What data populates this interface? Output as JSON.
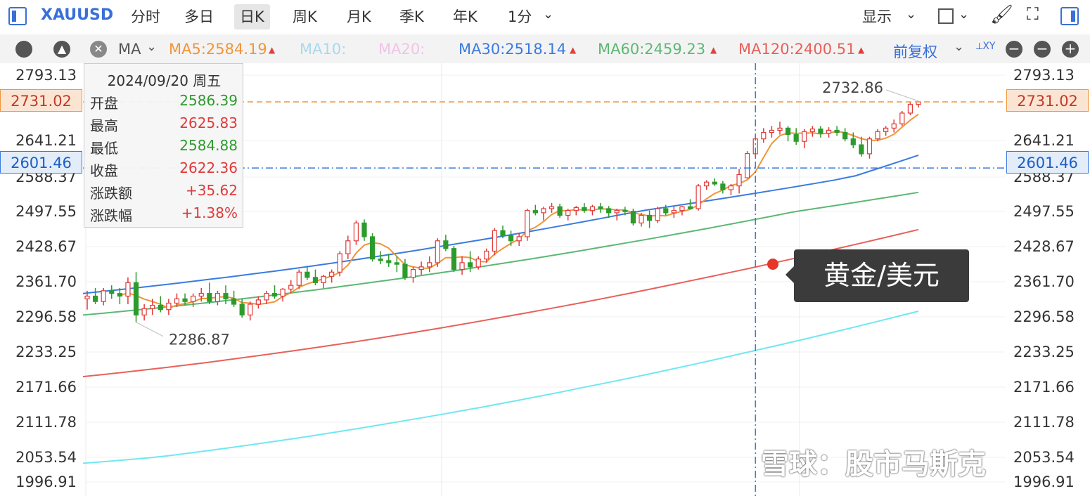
{
  "toolbar": {
    "symbol": "XAUUSD",
    "tabs": [
      "分时",
      "多日",
      "日K",
      "周K",
      "月K",
      "季K",
      "年K",
      "1分"
    ],
    "active_tab": "日K",
    "display_label": "显示",
    "adjust_label": "前复权"
  },
  "indicators": {
    "ma_label": "MA",
    "ma5": "MA5:2584.19",
    "ma10": "MA10:",
    "ma20": "MA20:",
    "ma30": "MA30:2518.14",
    "ma60": "MA60:2459.23",
    "ma120": "MA120:2400.51",
    "colors": {
      "ma5": "#f0953a",
      "ma10": "#a9d9ec",
      "ma20": "#f1c3e6",
      "ma30": "#3a7be0",
      "ma60": "#5cb874",
      "ma120": "#e8605a",
      "ma250": "#70e8ef"
    }
  },
  "tooltip": {
    "date": "2024/09/20 周五",
    "rows": [
      {
        "k": "开盘",
        "v": "2586.39",
        "color": "#2c9b2c"
      },
      {
        "k": "最高",
        "v": "2625.83",
        "color": "#e03a3a"
      },
      {
        "k": "最低",
        "v": "2584.88",
        "color": "#2c9b2c"
      },
      {
        "k": "收盘",
        "v": "2622.36",
        "color": "#e03a3a"
      },
      {
        "k": "涨跌额",
        "v": "+35.62",
        "color": "#e03a3a"
      },
      {
        "k": "涨跌幅",
        "v": "+1.38%",
        "color": "#e03a3a"
      }
    ]
  },
  "callout": "黄金/美元",
  "watermark": "雪球：股市马斯克",
  "current_price": "2731.02",
  "crosshair_price": "2601.46",
  "chart_data": {
    "type": "candlestick",
    "y_ticks": [
      "2793.13",
      "2641.21",
      "2588.37",
      "2497.55",
      "2428.67",
      "2361.70",
      "2296.58",
      "2233.25",
      "2171.66",
      "2111.78",
      "2053.54",
      "1996.91"
    ],
    "max_label": "2732.86",
    "min_label": "2286.87",
    "candles": [
      [
        2330,
        2345,
        2310,
        2335
      ],
      [
        2335,
        2350,
        2320,
        2325
      ],
      [
        2325,
        2350,
        2318,
        2345
      ],
      [
        2345,
        2355,
        2330,
        2340
      ],
      [
        2340,
        2350,
        2320,
        2335
      ],
      [
        2335,
        2370,
        2320,
        2360
      ],
      [
        2360,
        2380,
        2286.87,
        2300
      ],
      [
        2300,
        2320,
        2290,
        2312
      ],
      [
        2312,
        2330,
        2300,
        2318
      ],
      [
        2318,
        2335,
        2305,
        2310
      ],
      [
        2310,
        2330,
        2300,
        2322
      ],
      [
        2322,
        2340,
        2315,
        2330
      ],
      [
        2330,
        2340,
        2318,
        2325
      ],
      [
        2325,
        2340,
        2315,
        2335
      ],
      [
        2335,
        2350,
        2325,
        2340
      ],
      [
        2340,
        2360,
        2320,
        2325
      ],
      [
        2325,
        2345,
        2318,
        2340
      ],
      [
        2340,
        2355,
        2320,
        2330
      ],
      [
        2330,
        2345,
        2315,
        2320
      ],
      [
        2320,
        2330,
        2295,
        2300
      ],
      [
        2300,
        2325,
        2290,
        2320
      ],
      [
        2320,
        2335,
        2312,
        2328
      ],
      [
        2328,
        2345,
        2320,
        2340
      ],
      [
        2340,
        2355,
        2330,
        2335
      ],
      [
        2335,
        2350,
        2325,
        2348
      ],
      [
        2348,
        2365,
        2340,
        2355
      ],
      [
        2355,
        2385,
        2348,
        2380
      ],
      [
        2380,
        2392,
        2365,
        2370
      ],
      [
        2370,
        2385,
        2355,
        2360
      ],
      [
        2360,
        2375,
        2350,
        2372
      ],
      [
        2372,
        2385,
        2360,
        2380
      ],
      [
        2380,
        2420,
        2372,
        2415
      ],
      [
        2415,
        2450,
        2405,
        2440
      ],
      [
        2440,
        2480,
        2432,
        2475
      ],
      [
        2475,
        2482,
        2440,
        2448
      ],
      [
        2448,
        2455,
        2400,
        2405
      ],
      [
        2405,
        2420,
        2395,
        2402
      ],
      [
        2402,
        2415,
        2390,
        2398
      ],
      [
        2398,
        2410,
        2380,
        2395
      ],
      [
        2395,
        2405,
        2365,
        2370
      ],
      [
        2370,
        2390,
        2360,
        2385
      ],
      [
        2385,
        2400,
        2375,
        2390
      ],
      [
        2390,
        2410,
        2380,
        2398
      ],
      [
        2398,
        2445,
        2390,
        2440
      ],
      [
        2440,
        2452,
        2420,
        2425
      ],
      [
        2425,
        2430,
        2380,
        2385
      ],
      [
        2385,
        2410,
        2375,
        2398
      ],
      [
        2398,
        2420,
        2380,
        2390
      ],
      [
        2390,
        2410,
        2385,
        2405
      ],
      [
        2405,
        2425,
        2398,
        2420
      ],
      [
        2420,
        2465,
        2412,
        2460
      ],
      [
        2460,
        2470,
        2445,
        2450
      ],
      [
        2450,
        2460,
        2430,
        2440
      ],
      [
        2440,
        2455,
        2430,
        2448
      ],
      [
        2448,
        2505,
        2440,
        2500
      ],
      [
        2500,
        2515,
        2490,
        2495
      ],
      [
        2495,
        2510,
        2480,
        2505
      ],
      [
        2505,
        2520,
        2495,
        2510
      ],
      [
        2510,
        2518,
        2485,
        2490
      ],
      [
        2490,
        2505,
        2480,
        2500
      ],
      [
        2500,
        2512,
        2490,
        2508
      ],
      [
        2508,
        2520,
        2495,
        2500
      ],
      [
        2500,
        2515,
        2490,
        2510
      ],
      [
        2510,
        2520,
        2495,
        2505
      ],
      [
        2505,
        2512,
        2485,
        2495
      ],
      [
        2495,
        2505,
        2480,
        2500
      ],
      [
        2500,
        2510,
        2490,
        2498
      ],
      [
        2498,
        2505,
        2470,
        2475
      ],
      [
        2475,
        2495,
        2468,
        2490
      ],
      [
        2490,
        2500,
        2465,
        2480
      ],
      [
        2480,
        2510,
        2475,
        2505
      ],
      [
        2505,
        2515,
        2490,
        2495
      ],
      [
        2495,
        2510,
        2485,
        2500
      ],
      [
        2500,
        2512,
        2490,
        2510
      ],
      [
        2510,
        2530,
        2505,
        2505
      ],
      [
        2505,
        2570,
        2500,
        2565
      ],
      [
        2565,
        2580,
        2555,
        2575
      ],
      [
        2575,
        2585,
        2565,
        2570
      ],
      [
        2570,
        2578,
        2545,
        2555
      ],
      [
        2555,
        2570,
        2540,
        2565
      ],
      [
        2565,
        2600,
        2545,
        2592
      ],
      [
        2586.39,
        2625.83,
        2584.88,
        2622.36
      ],
      [
        2622,
        2650,
        2615,
        2645
      ],
      [
        2645,
        2670,
        2638,
        2660
      ],
      [
        2660,
        2675,
        2648,
        2665
      ],
      [
        2665,
        2685,
        2655,
        2670
      ],
      [
        2670,
        2675,
        2640,
        2655
      ],
      [
        2655,
        2670,
        2635,
        2640
      ],
      [
        2640,
        2668,
        2630,
        2662
      ],
      [
        2662,
        2675,
        2650,
        2668
      ],
      [
        2668,
        2675,
        2648,
        2658
      ],
      [
        2658,
        2672,
        2648,
        2665
      ],
      [
        2665,
        2675,
        2652,
        2660
      ],
      [
        2660,
        2670,
        2640,
        2645
      ],
      [
        2645,
        2660,
        2630,
        2635
      ],
      [
        2635,
        2650,
        2618,
        2622
      ],
      [
        2622,
        2650,
        2615,
        2645
      ],
      [
        2645,
        2668,
        2640,
        2662
      ],
      [
        2662,
        2675,
        2652,
        2670
      ],
      [
        2670,
        2690,
        2660,
        2680
      ],
      [
        2680,
        2710,
        2675,
        2705
      ],
      [
        2705,
        2730,
        2700,
        2725
      ],
      [
        2725,
        2732.86,
        2718,
        2731.02
      ]
    ]
  }
}
